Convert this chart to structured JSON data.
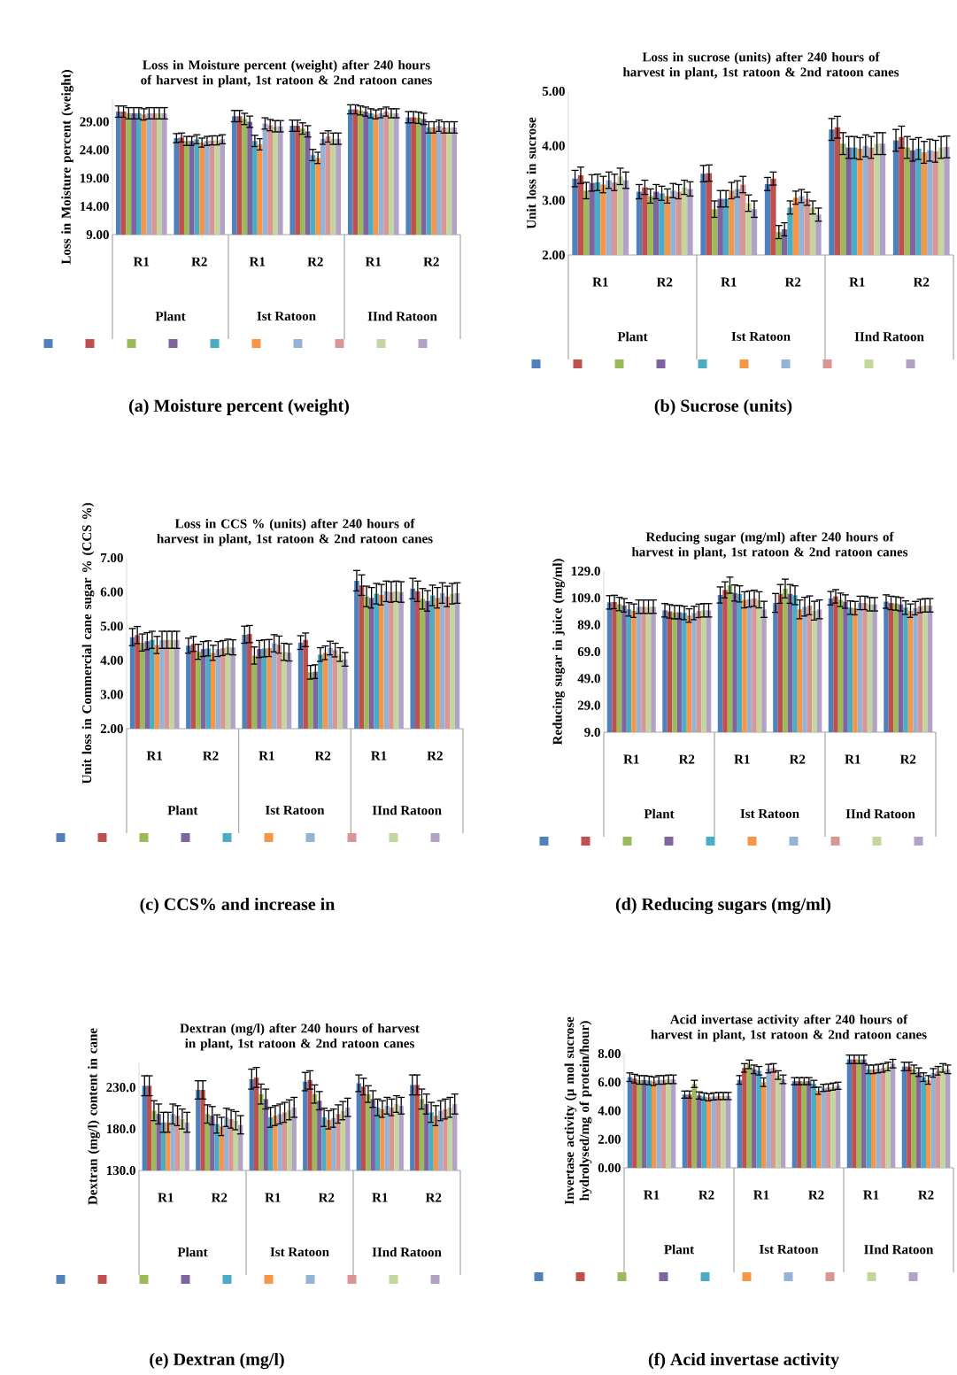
{
  "chart_data": [
    {
      "type": "bar",
      "title": "Loss in Moisture percent (weight) after 240 hours of harvest in plant, 1st ratoon & 2nd ratoon canes",
      "ylabel": "Loss in Moisture percent (weight)",
      "categories": [
        "R1",
        "R2",
        "R1",
        "R2",
        "R1",
        "R2"
      ],
      "ylim": [
        9,
        33
      ],
      "yticks": [
        {
          "value": 9,
          "label": "9.00"
        },
        {
          "value": 14,
          "label": "14.00"
        },
        {
          "value": 19,
          "label": "19.00"
        },
        {
          "value": 24,
          "label": "24.00"
        },
        {
          "value": 29,
          "label": "29.00"
        }
      ],
      "annotations": [
        "Plant",
        "Ist Ratoon",
        "IInd Ratoon",
        "(a) Moisture percent (weight)"
      ],
      "series": [
        {
          "color": "#4f81bd",
          "values": [
            30.8,
            26.1,
            30.0,
            28.3,
            31.2,
            29.8
          ],
          "errors": [
            1.0,
            0.8,
            1.0,
            1.0,
            0.8,
            1.0
          ]
        },
        {
          "color": "#c0504d",
          "values": [
            30.8,
            26.2,
            30.0,
            28.3,
            31.2,
            29.8
          ],
          "errors": [
            1.0,
            0.8,
            1.0,
            1.0,
            0.8,
            1.0
          ]
        },
        {
          "color": "#9bbb59",
          "values": [
            30.5,
            25.6,
            29.5,
            27.8,
            31.0,
            29.7
          ],
          "errors": [
            1.0,
            0.8,
            1.0,
            1.0,
            0.8,
            1.0
          ]
        },
        {
          "color": "#8064a2",
          "values": [
            30.5,
            25.6,
            29.0,
            27.3,
            30.8,
            29.5
          ],
          "errors": [
            1.0,
            0.8,
            1.0,
            1.0,
            0.8,
            1.0
          ]
        },
        {
          "color": "#4bacc6",
          "values": [
            30.5,
            25.9,
            25.6,
            23.1,
            30.5,
            28.0
          ],
          "errors": [
            1.0,
            0.8,
            1.0,
            1.0,
            0.8,
            1.0
          ]
        },
        {
          "color": "#f79646",
          "values": [
            30.3,
            25.3,
            25.0,
            22.6,
            30.3,
            28.0
          ],
          "errors": [
            1.0,
            0.8,
            1.0,
            1.0,
            0.8,
            1.0
          ]
        },
        {
          "color": "#95b3d7",
          "values": [
            30.5,
            25.6,
            28.7,
            26.0,
            30.5,
            28.3
          ],
          "errors": [
            1.0,
            0.8,
            1.0,
            1.0,
            0.8,
            1.0
          ]
        },
        {
          "color": "#d99694",
          "values": [
            30.5,
            25.7,
            28.4,
            26.4,
            30.8,
            28.0
          ],
          "errors": [
            1.0,
            0.8,
            1.0,
            1.0,
            0.8,
            1.0
          ]
        },
        {
          "color": "#c3d69b",
          "values": [
            30.5,
            25.7,
            28.2,
            26.0,
            30.5,
            28.0
          ],
          "errors": [
            1.0,
            0.8,
            1.0,
            1.0,
            0.8,
            1.0
          ]
        },
        {
          "color": "#b3a2c7",
          "values": [
            30.5,
            25.9,
            28.2,
            26.0,
            30.5,
            28.0
          ],
          "errors": [
            1.0,
            0.8,
            1.0,
            1.0,
            0.8,
            1.0
          ]
        }
      ]
    },
    {
      "type": "bar",
      "title": "Loss in sucrose (units) after 240 hours of harvest in plant, 1st ratoon & 2nd ratoon canes",
      "ylabel": "Unit loss in sucrose",
      "categories": [
        "R1",
        "R2",
        "R1",
        "R2",
        "R1",
        "R2"
      ],
      "ylim": [
        2,
        5
      ],
      "yticks": [
        {
          "value": 2,
          "label": "2.00"
        },
        {
          "value": 3,
          "label": "3.00"
        },
        {
          "value": 4,
          "label": "4.00"
        },
        {
          "value": 5,
          "label": "5.00"
        }
      ],
      "annotations": [
        "Plant",
        "Ist Ratoon",
        "IInd Ratoon",
        "(b) Sucrose (units)"
      ],
      "series": [
        {
          "color": "#4f81bd",
          "values": [
            3.4,
            3.16,
            3.49,
            3.3,
            4.3,
            4.1
          ],
          "errors": [
            0.15,
            0.13,
            0.15,
            0.12,
            0.2,
            0.2
          ]
        },
        {
          "color": "#c0504d",
          "values": [
            3.46,
            3.24,
            3.5,
            3.4,
            4.34,
            4.16
          ],
          "errors": [
            0.15,
            0.13,
            0.15,
            0.12,
            0.2,
            0.2
          ]
        },
        {
          "color": "#9bbb59",
          "values": [
            3.18,
            3.08,
            2.84,
            2.42,
            4.04,
            3.97
          ],
          "errors": [
            0.15,
            0.13,
            0.15,
            0.12,
            0.2,
            0.2
          ]
        },
        {
          "color": "#8064a2",
          "values": [
            3.32,
            3.16,
            3.03,
            2.47,
            3.97,
            3.92
          ],
          "errors": [
            0.15,
            0.13,
            0.15,
            0.12,
            0.2,
            0.2
          ]
        },
        {
          "color": "#4bacc6",
          "values": [
            3.33,
            3.13,
            3.03,
            2.87,
            3.97,
            3.95
          ],
          "errors": [
            0.15,
            0.13,
            0.15,
            0.12,
            0.2,
            0.2
          ]
        },
        {
          "color": "#f79646",
          "values": [
            3.29,
            3.08,
            3.18,
            3.05,
            3.95,
            3.88
          ],
          "errors": [
            0.15,
            0.13,
            0.15,
            0.12,
            0.2,
            0.2
          ]
        },
        {
          "color": "#95b3d7",
          "values": [
            3.37,
            3.18,
            3.21,
            3.08,
            4.0,
            3.92
          ],
          "errors": [
            0.15,
            0.13,
            0.15,
            0.12,
            0.2,
            0.2
          ]
        },
        {
          "color": "#d99694",
          "values": [
            3.33,
            3.16,
            3.29,
            3.03,
            3.97,
            3.9
          ],
          "errors": [
            0.15,
            0.13,
            0.15,
            0.12,
            0.2,
            0.2
          ]
        },
        {
          "color": "#c3d69b",
          "values": [
            3.44,
            3.24,
            2.95,
            2.87,
            4.04,
            3.97
          ],
          "errors": [
            0.15,
            0.13,
            0.15,
            0.12,
            0.2,
            0.2
          ]
        },
        {
          "color": "#b3a2c7",
          "values": [
            3.37,
            3.21,
            2.84,
            2.74,
            4.04,
            3.98
          ],
          "errors": [
            0.15,
            0.13,
            0.15,
            0.12,
            0.2,
            0.2
          ]
        }
      ]
    },
    {
      "type": "bar",
      "title": "Loss in CCS % (units) after 240 hours of harvest in plant, 1st ratoon & 2nd ratoon canes",
      "ylabel": "Unit loss in Commercial cane sugar % (CCS %)",
      "categories": [
        "R1",
        "R2",
        "R1",
        "R2",
        "R1",
        "R2"
      ],
      "ylim": [
        2,
        7
      ],
      "yticks": [
        {
          "value": 2,
          "label": "2.00"
        },
        {
          "value": 3,
          "label": "3.00"
        },
        {
          "value": 4,
          "label": "4.00"
        },
        {
          "value": 5,
          "label": "5.00"
        },
        {
          "value": 6,
          "label": "6.00"
        },
        {
          "value": 7,
          "label": "7.00"
        }
      ],
      "annotations": [
        "Plant",
        "Ist Ratoon",
        "IInd Ratoon",
        "(c) CCS% and increase in"
      ],
      "series": [
        {
          "color": "#4f81bd",
          "values": [
            4.68,
            4.43,
            4.75,
            4.52,
            6.33,
            6.1
          ],
          "errors": [
            0.25,
            0.22,
            0.25,
            0.2,
            0.3,
            0.3
          ]
        },
        {
          "color": "#c0504d",
          "values": [
            4.74,
            4.48,
            4.77,
            4.6,
            6.2,
            6.02
          ],
          "errors": [
            0.25,
            0.22,
            0.25,
            0.2,
            0.3,
            0.3
          ]
        },
        {
          "color": "#9bbb59",
          "values": [
            4.52,
            4.25,
            4.14,
            3.65,
            5.87,
            5.8
          ],
          "errors": [
            0.25,
            0.22,
            0.25,
            0.2,
            0.3,
            0.3
          ]
        },
        {
          "color": "#8064a2",
          "values": [
            4.56,
            4.33,
            4.33,
            3.67,
            5.83,
            5.74
          ],
          "errors": [
            0.25,
            0.22,
            0.25,
            0.2,
            0.3,
            0.3
          ]
        },
        {
          "color": "#4bacc6",
          "values": [
            4.6,
            4.35,
            4.35,
            4.17,
            5.95,
            5.9
          ],
          "errors": [
            0.25,
            0.22,
            0.25,
            0.2,
            0.3,
            0.3
          ]
        },
        {
          "color": "#f79646",
          "values": [
            4.45,
            4.22,
            4.36,
            4.22,
            5.92,
            5.83
          ],
          "errors": [
            0.25,
            0.22,
            0.25,
            0.2,
            0.3,
            0.3
          ]
        },
        {
          "color": "#95b3d7",
          "values": [
            4.6,
            4.33,
            4.5,
            4.36,
            6.02,
            5.97
          ],
          "errors": [
            0.25,
            0.22,
            0.25,
            0.2,
            0.3,
            0.3
          ]
        },
        {
          "color": "#d99694",
          "values": [
            4.6,
            4.36,
            4.46,
            4.3,
            6.0,
            5.87
          ],
          "errors": [
            0.25,
            0.22,
            0.25,
            0.2,
            0.3,
            0.3
          ]
        },
        {
          "color": "#c3d69b",
          "values": [
            4.6,
            4.4,
            4.25,
            4.17,
            6.02,
            5.95
          ],
          "errors": [
            0.25,
            0.22,
            0.25,
            0.2,
            0.3,
            0.3
          ]
        },
        {
          "color": "#b3a2c7",
          "values": [
            4.6,
            4.38,
            4.23,
            4.03,
            6.0,
            5.97
          ],
          "errors": [
            0.25,
            0.22,
            0.25,
            0.2,
            0.3,
            0.3
          ]
        }
      ]
    },
    {
      "type": "bar",
      "title": "Reducing sugar (mg/ml) after 240 hours of harvest in plant, 1st ratoon & 2nd ratoon canes",
      "ylabel": "Reducing sugar in juice (mg/ml)",
      "categories": [
        "R1",
        "R2",
        "R1",
        "R2",
        "R1",
        "R2"
      ],
      "ylim": [
        9,
        129
      ],
      "yticks": [
        {
          "value": 9,
          "label": "9.0"
        },
        {
          "value": 29,
          "label": "29.0"
        },
        {
          "value": 49,
          "label": "49.0"
        },
        {
          "value": 69,
          "label": "69.0"
        },
        {
          "value": 89,
          "label": "89.0"
        },
        {
          "value": 109,
          "label": "109.0"
        },
        {
          "value": 129,
          "label": "129.0"
        }
      ],
      "annotations": [
        "Plant",
        "Ist Ratoon",
        "IInd Ratoon",
        "(d) Reducing sugars (mg/ml)"
      ],
      "series": [
        {
          "color": "#4f81bd",
          "values": [
            105.7,
            99.8,
            111.2,
            105.3,
            108.8,
            106.3
          ],
          "errors": [
            5,
            5,
            6,
            7,
            5,
            5
          ]
        },
        {
          "color": "#c0504d",
          "values": [
            106.0,
            99.0,
            115.0,
            112.0,
            110.2,
            105.3
          ],
          "errors": [
            5,
            5,
            6,
            7,
            5,
            5
          ]
        },
        {
          "color": "#9bbb59",
          "values": [
            104.5,
            98.4,
            118.5,
            116.0,
            107.6,
            104.9
          ],
          "errors": [
            5,
            5,
            6,
            7,
            5,
            5
          ]
        },
        {
          "color": "#8064a2",
          "values": [
            103.5,
            98.4,
            112.7,
            112.0,
            106.3,
            104.3
          ],
          "errors": [
            5,
            5,
            6,
            7,
            5,
            5
          ]
        },
        {
          "color": "#4bacc6",
          "values": [
            100.5,
            97.8,
            112.0,
            111.0,
            101.8,
            101.8
          ],
          "errors": [
            5,
            5,
            6,
            7,
            5,
            5
          ]
        },
        {
          "color": "#f79646",
          "values": [
            99.5,
            95.9,
            107.6,
            100.5,
            101.4,
            99.5
          ],
          "errors": [
            5,
            5,
            6,
            7,
            5,
            5
          ]
        },
        {
          "color": "#95b3d7",
          "values": [
            102.5,
            97.8,
            108.2,
            102.5,
            105.3,
            101.4
          ],
          "errors": [
            5,
            5,
            6,
            7,
            5,
            5
          ]
        },
        {
          "color": "#d99694",
          "values": [
            102.5,
            99.4,
            108.8,
            103.5,
            105.3,
            103.0
          ],
          "errors": [
            5,
            5,
            6,
            7,
            5,
            5
          ]
        },
        {
          "color": "#c3d69b",
          "values": [
            102.5,
            99.8,
            107.6,
            99.5,
            104.3,
            103.5
          ],
          "errors": [
            5,
            5,
            6,
            7,
            5,
            5
          ]
        },
        {
          "color": "#b3a2c7",
          "values": [
            102.5,
            99.8,
            100.5,
            100.5,
            104.3,
            103.5
          ],
          "errors": [
            5,
            5,
            6,
            7,
            5,
            5
          ]
        }
      ]
    },
    {
      "type": "bar",
      "title": "Dextran (mg/l) after 240 hours of harvest in plant, 1st ratoon & 2nd ratoon canes",
      "ylabel": "Dextran (mg/l) content in cane",
      "categories": [
        "R1",
        "R2",
        "R1",
        "R2",
        "R1",
        "R2"
      ],
      "ylim": [
        130,
        260
      ],
      "yticks": [
        {
          "value": 130,
          "label": "130.0"
        },
        {
          "value": 180,
          "label": "180.0"
        },
        {
          "value": 230,
          "label": "230.0"
        }
      ],
      "annotations": [
        "Plant",
        "Ist Ratoon",
        "IInd Ratoon",
        "(e) Dextran (mg/l)"
      ],
      "series": [
        {
          "color": "#4f81bd",
          "values": [
            232,
            227,
            240,
            237,
            235,
            233
          ],
          "errors": [
            12,
            11,
            12,
            11,
            10,
            12
          ]
        },
        {
          "color": "#c0504d",
          "values": [
            232,
            227,
            242,
            239,
            231,
            233
          ],
          "errors": [
            12,
            11,
            12,
            11,
            10,
            12
          ]
        },
        {
          "color": "#9bbb59",
          "values": [
            202,
            198,
            222,
            222,
            222,
            216
          ],
          "errors": [
            12,
            11,
            12,
            11,
            10,
            12
          ]
        },
        {
          "color": "#8064a2",
          "values": [
            198,
            196,
            216,
            214,
            216,
            210
          ],
          "errors": [
            12,
            11,
            12,
            11,
            10,
            12
          ]
        },
        {
          "color": "#4bacc6",
          "values": [
            188,
            186,
            194,
            194,
            206,
            200
          ],
          "errors": [
            12,
            11,
            12,
            11,
            10,
            12
          ]
        },
        {
          "color": "#f79646",
          "values": [
            188,
            183,
            196,
            191,
            204,
            196
          ],
          "errors": [
            12,
            11,
            12,
            11,
            10,
            12
          ]
        },
        {
          "color": "#95b3d7",
          "values": [
            198,
            194,
            198,
            193,
            208,
            202
          ],
          "errors": [
            12,
            11,
            12,
            11,
            10,
            12
          ]
        },
        {
          "color": "#d99694",
          "values": [
            196,
            192,
            200,
            198,
            206,
            204
          ],
          "errors": [
            12,
            11,
            12,
            11,
            10,
            12
          ]
        },
        {
          "color": "#c3d69b",
          "values": [
            192,
            190,
            203,
            202,
            210,
            206
          ],
          "errors": [
            12,
            11,
            12,
            11,
            10,
            12
          ]
        },
        {
          "color": "#b3a2c7",
          "values": [
            188,
            185,
            206,
            206,
            208,
            210
          ],
          "errors": [
            12,
            11,
            12,
            11,
            10,
            12
          ]
        }
      ]
    },
    {
      "type": "bar",
      "title": "Acid invertase activity after 240 hours of harvest in plant, 1st ratoon & 2nd ratoon canes",
      "ylabel": "Invertase activity (µ mol sucrose hydrolysed/mg of protein/hour)",
      "categories": [
        "R1",
        "R2",
        "R1",
        "R2",
        "R1",
        "R2"
      ],
      "ylim": [
        0,
        8
      ],
      "yticks": [
        {
          "value": 0,
          "label": "0.00"
        },
        {
          "value": 2,
          "label": "2.00"
        },
        {
          "value": 4,
          "label": "4.00"
        },
        {
          "value": 6,
          "label": "6.00"
        },
        {
          "value": 8,
          "label": "8.00"
        }
      ],
      "annotations": [
        "Plant",
        "Ist Ratoon",
        "IInd Ratoon",
        "(f) Acid invertase activity"
      ],
      "series": [
        {
          "color": "#4f81bd",
          "values": [
            6.35,
            5.13,
            6.16,
            6.07,
            7.6,
            7.1
          ],
          "errors": [
            0.3,
            0.25,
            0.3,
            0.25,
            0.3,
            0.3
          ]
        },
        {
          "color": "#c0504d",
          "values": [
            6.25,
            5.13,
            7.0,
            6.07,
            7.6,
            7.1
          ],
          "errors": [
            0.3,
            0.25,
            0.3,
            0.25,
            0.3,
            0.3
          ]
        },
        {
          "color": "#9bbb59",
          "values": [
            6.16,
            5.88,
            7.25,
            6.07,
            7.6,
            6.9
          ],
          "errors": [
            0.3,
            0.25,
            0.3,
            0.25,
            0.3,
            0.3
          ]
        },
        {
          "color": "#8064a2",
          "values": [
            6.16,
            5.07,
            6.9,
            6.07,
            7.6,
            6.7
          ],
          "errors": [
            0.3,
            0.25,
            0.3,
            0.25,
            0.3,
            0.3
          ]
        },
        {
          "color": "#4bacc6",
          "values": [
            6.12,
            5.0,
            6.8,
            5.88,
            6.9,
            6.35
          ],
          "errors": [
            0.3,
            0.25,
            0.3,
            0.25,
            0.3,
            0.3
          ]
        },
        {
          "color": "#f79646",
          "values": [
            6.07,
            4.94,
            6.0,
            5.4,
            6.9,
            6.16
          ],
          "errors": [
            0.3,
            0.25,
            0.3,
            0.25,
            0.3,
            0.3
          ]
        },
        {
          "color": "#95b3d7",
          "values": [
            6.16,
            5.0,
            6.95,
            5.6,
            6.95,
            6.65
          ],
          "errors": [
            0.3,
            0.25,
            0.3,
            0.25,
            0.3,
            0.3
          ]
        },
        {
          "color": "#d99694",
          "values": [
            6.16,
            5.03,
            7.0,
            5.63,
            7.0,
            6.8
          ],
          "errors": [
            0.3,
            0.25,
            0.3,
            0.25,
            0.3,
            0.3
          ]
        },
        {
          "color": "#c3d69b",
          "values": [
            6.2,
            5.03,
            6.5,
            5.69,
            7.1,
            7.0
          ],
          "errors": [
            0.3,
            0.25,
            0.3,
            0.25,
            0.3,
            0.3
          ]
        },
        {
          "color": "#b3a2c7",
          "values": [
            6.2,
            5.03,
            6.2,
            5.75,
            7.3,
            6.9
          ],
          "errors": [
            0.3,
            0.25,
            0.3,
            0.25,
            0.3,
            0.3
          ]
        }
      ]
    }
  ]
}
